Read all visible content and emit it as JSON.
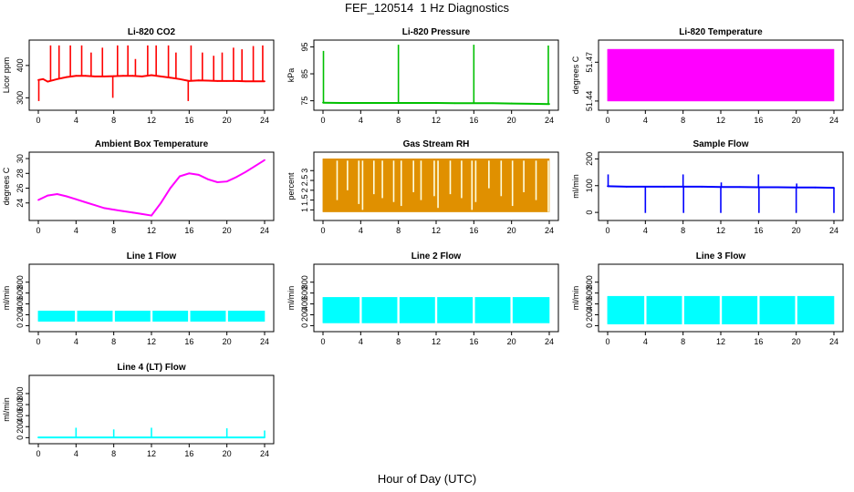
{
  "title": "FEF_120514  1 Hz Diagnostics",
  "xlabel": "Hour of Day (UTC)",
  "chart_data": [
    {
      "type": "line",
      "title": "Li-820 CO2",
      "ylabel": "Licor ppm",
      "color": "#ff0000",
      "xlim": [
        0,
        24
      ],
      "xticks": [
        0,
        4,
        8,
        12,
        16,
        20,
        24
      ],
      "ylim": [
        270,
        470
      ],
      "yticks": [
        300,
        400
      ],
      "x": [
        0,
        0.5,
        1,
        2,
        3,
        4,
        5,
        6,
        7,
        8,
        9,
        10,
        11,
        12,
        13,
        14,
        15,
        16,
        17,
        18,
        19,
        20,
        21,
        22,
        23,
        24
      ],
      "values": [
        355,
        358,
        350,
        358,
        364,
        368,
        368,
        366,
        366,
        367,
        368,
        368,
        366,
        370,
        366,
        362,
        358,
        352,
        354,
        353,
        352,
        352,
        352,
        351,
        351,
        351
      ],
      "spikes": [
        {
          "x": 0.05,
          "y": 290
        },
        {
          "x": 1.3,
          "y": 462
        },
        {
          "x": 2.2,
          "y": 462
        },
        {
          "x": 3.4,
          "y": 462
        },
        {
          "x": 4.6,
          "y": 462
        },
        {
          "x": 5.6,
          "y": 440
        },
        {
          "x": 6.8,
          "y": 455
        },
        {
          "x": 7.9,
          "y": 300
        },
        {
          "x": 8.4,
          "y": 462
        },
        {
          "x": 9.5,
          "y": 462
        },
        {
          "x": 10.3,
          "y": 420
        },
        {
          "x": 11.6,
          "y": 462
        },
        {
          "x": 12.5,
          "y": 462
        },
        {
          "x": 13.8,
          "y": 462
        },
        {
          "x": 14.6,
          "y": 440
        },
        {
          "x": 15.9,
          "y": 290
        },
        {
          "x": 16.2,
          "y": 462
        },
        {
          "x": 17.4,
          "y": 440
        },
        {
          "x": 18.6,
          "y": 430
        },
        {
          "x": 19.5,
          "y": 440
        },
        {
          "x": 20.7,
          "y": 455
        },
        {
          "x": 21.6,
          "y": 450
        },
        {
          "x": 22.8,
          "y": 460
        },
        {
          "x": 23.8,
          "y": 462
        }
      ]
    },
    {
      "type": "line",
      "title": "Li-820 Pressure",
      "ylabel": "kPa",
      "color": "#00c000",
      "xlim": [
        0,
        24
      ],
      "xticks": [
        0,
        4,
        8,
        12,
        16,
        20,
        24
      ],
      "ylim": [
        72.5,
        96.5
      ],
      "yticks": [
        75,
        85,
        95
      ],
      "x": [
        0,
        2,
        4,
        6,
        8,
        10,
        12,
        14,
        16,
        18,
        20,
        22,
        24
      ],
      "values": [
        74.3,
        74.2,
        74.2,
        74.2,
        74.2,
        74.2,
        74.2,
        74.1,
        74.1,
        74.1,
        74.0,
        73.9,
        73.8
      ],
      "spikes": [
        {
          "x": 0.05,
          "y": 93.5
        },
        {
          "x": 8.0,
          "y": 95.8
        },
        {
          "x": 16.0,
          "y": 95.8
        },
        {
          "x": 23.9,
          "y": 95.5
        }
      ]
    },
    {
      "type": "area",
      "title": "Li-820 Temperature",
      "ylabel": "degrees C",
      "color": "#ff00ff",
      "xlim": [
        0,
        24
      ],
      "xticks": [
        0,
        4,
        8,
        12,
        16,
        20,
        24
      ],
      "ylim": [
        51.435,
        51.485
      ],
      "yticks": [
        51.44,
        51.47
      ],
      "x": [
        0,
        24
      ],
      "band": [
        51.44,
        51.48
      ]
    },
    {
      "type": "line",
      "title": "Ambient Box Temperature",
      "ylabel": "degrees C",
      "color": "#ff00ff",
      "xlim": [
        0,
        24
      ],
      "xticks": [
        0,
        4,
        8,
        12,
        16,
        20,
        24
      ],
      "ylim": [
        22,
        30.5
      ],
      "yticks": [
        24,
        26,
        28,
        30
      ],
      "x": [
        0,
        1,
        2,
        3,
        4,
        5,
        6,
        7,
        8,
        9,
        10,
        11,
        12,
        13,
        14,
        15,
        16,
        17,
        18,
        19,
        20,
        21,
        22,
        23,
        24
      ],
      "values": [
        24.4,
        25.0,
        25.2,
        24.9,
        24.5,
        24.1,
        23.7,
        23.3,
        23.1,
        22.9,
        22.7,
        22.5,
        22.3,
        24.0,
        26.0,
        27.6,
        28.0,
        27.8,
        27.2,
        26.8,
        26.9,
        27.5,
        28.2,
        29.0,
        29.8
      ]
    },
    {
      "type": "line",
      "title": "Gas Stream RH",
      "ylabel": "percent",
      "color": "#e09000",
      "xlim": [
        0,
        24
      ],
      "xticks": [
        0,
        4,
        8,
        12,
        16,
        20,
        24
      ],
      "ylim": [
        0.6,
        3.8
      ],
      "yticks": [
        1.0,
        1.5,
        2.0,
        2.5,
        3.0
      ],
      "x": [
        0,
        24
      ],
      "band": [
        0.9,
        3.6
      ],
      "dips": [
        {
          "x": 1.5,
          "y": 1.5
        },
        {
          "x": 2.6,
          "y": 2.0
        },
        {
          "x": 3.8,
          "y": 1.3
        },
        {
          "x": 4.2,
          "y": 1.0
        },
        {
          "x": 5.4,
          "y": 1.8
        },
        {
          "x": 6.3,
          "y": 1.6
        },
        {
          "x": 7.5,
          "y": 1.4
        },
        {
          "x": 8.3,
          "y": 1.2
        },
        {
          "x": 9.6,
          "y": 1.9
        },
        {
          "x": 10.4,
          "y": 1.5
        },
        {
          "x": 11.8,
          "y": 1.7
        },
        {
          "x": 12.2,
          "y": 1.1
        },
        {
          "x": 13.5,
          "y": 1.8
        },
        {
          "x": 14.7,
          "y": 1.6
        },
        {
          "x": 15.8,
          "y": 1.0
        },
        {
          "x": 16.2,
          "y": 1.4
        },
        {
          "x": 17.6,
          "y": 2.1
        },
        {
          "x": 18.9,
          "y": 1.7
        },
        {
          "x": 20.1,
          "y": 1.2
        },
        {
          "x": 21.3,
          "y": 1.9
        },
        {
          "x": 22.6,
          "y": 1.5
        },
        {
          "x": 23.9,
          "y": 0.9
        }
      ]
    },
    {
      "type": "line",
      "title": "Sample Flow",
      "ylabel": "ml/min",
      "color": "#0000ff",
      "xlim": [
        0,
        24
      ],
      "xticks": [
        0,
        4,
        8,
        12,
        16,
        20,
        24
      ],
      "ylim": [
        -20,
        215
      ],
      "yticks": [
        0,
        100,
        200
      ],
      "x": [
        0,
        2,
        4,
        6,
        8,
        10,
        12,
        14,
        16,
        18,
        20,
        22,
        24
      ],
      "values": [
        98,
        96,
        96,
        96,
        96,
        96,
        95,
        95,
        94,
        94,
        93,
        93,
        92
      ],
      "spikes": [
        {
          "x": 0.05,
          "y": 142
        },
        {
          "x": 4.0,
          "y": -2
        },
        {
          "x": 8.0,
          "y": 142
        },
        {
          "x": 8.05,
          "y": -2
        },
        {
          "x": 12.0,
          "y": -2
        },
        {
          "x": 12.05,
          "y": 112
        },
        {
          "x": 16.0,
          "y": 142
        },
        {
          "x": 16.05,
          "y": -2
        },
        {
          "x": 20.0,
          "y": -2
        },
        {
          "x": 20.05,
          "y": 108
        },
        {
          "x": 24.0,
          "y": -2
        }
      ]
    },
    {
      "type": "area",
      "title": "Line 1 Flow",
      "ylabel": "ml/min",
      "color": "#00ffff",
      "xlim": [
        0,
        24
      ],
      "xticks": [
        0,
        4,
        8,
        12,
        16,
        20,
        24
      ],
      "ylim": [
        -60,
        1080
      ],
      "yticks": [
        0,
        200,
        400,
        600,
        800
      ],
      "x": [
        0,
        24
      ],
      "band": [
        80,
        270
      ],
      "gaps": [
        4.0,
        8.0,
        12.0,
        16.0,
        20.0
      ]
    },
    {
      "type": "area",
      "title": "Line 2 Flow",
      "ylabel": "ml/min",
      "color": "#00ffff",
      "xlim": [
        0,
        24
      ],
      "xticks": [
        0,
        4,
        8,
        12,
        16,
        20,
        24
      ],
      "ylim": [
        -60,
        1080
      ],
      "yticks": [
        0,
        200,
        400,
        600,
        800
      ],
      "x": [
        0,
        24
      ],
      "band": [
        50,
        520
      ],
      "gaps": [
        4.0,
        8.0,
        12.0,
        16.0,
        20.0
      ]
    },
    {
      "type": "area",
      "title": "Line 3 Flow",
      "ylabel": "ml/min",
      "color": "#00ffff",
      "xlim": [
        0,
        24
      ],
      "xticks": [
        0,
        4,
        8,
        12,
        16,
        20,
        24
      ],
      "ylim": [
        -60,
        1080
      ],
      "yticks": [
        0,
        200,
        400,
        600,
        800
      ],
      "x": [
        0,
        24
      ],
      "band": [
        30,
        540
      ],
      "gaps": [
        4.0,
        8.0,
        12.0,
        16.0,
        20.0
      ]
    },
    {
      "type": "line",
      "title": "Line 4 (LT) Flow",
      "ylabel": "ml/min",
      "color": "#00ffff",
      "xlim": [
        0,
        24
      ],
      "xticks": [
        0,
        4,
        8,
        12,
        16,
        20,
        24
      ],
      "ylim": [
        -60,
        1080
      ],
      "yticks": [
        0,
        200,
        400,
        600,
        800
      ],
      "x": [
        0,
        24
      ],
      "values": [
        5,
        5
      ],
      "spikes": [
        {
          "x": 4.0,
          "y": 180
        },
        {
          "x": 8.0,
          "y": 150
        },
        {
          "x": 12.0,
          "y": 180
        },
        {
          "x": 20.0,
          "y": 170
        },
        {
          "x": 24.0,
          "y": 130
        }
      ]
    }
  ]
}
